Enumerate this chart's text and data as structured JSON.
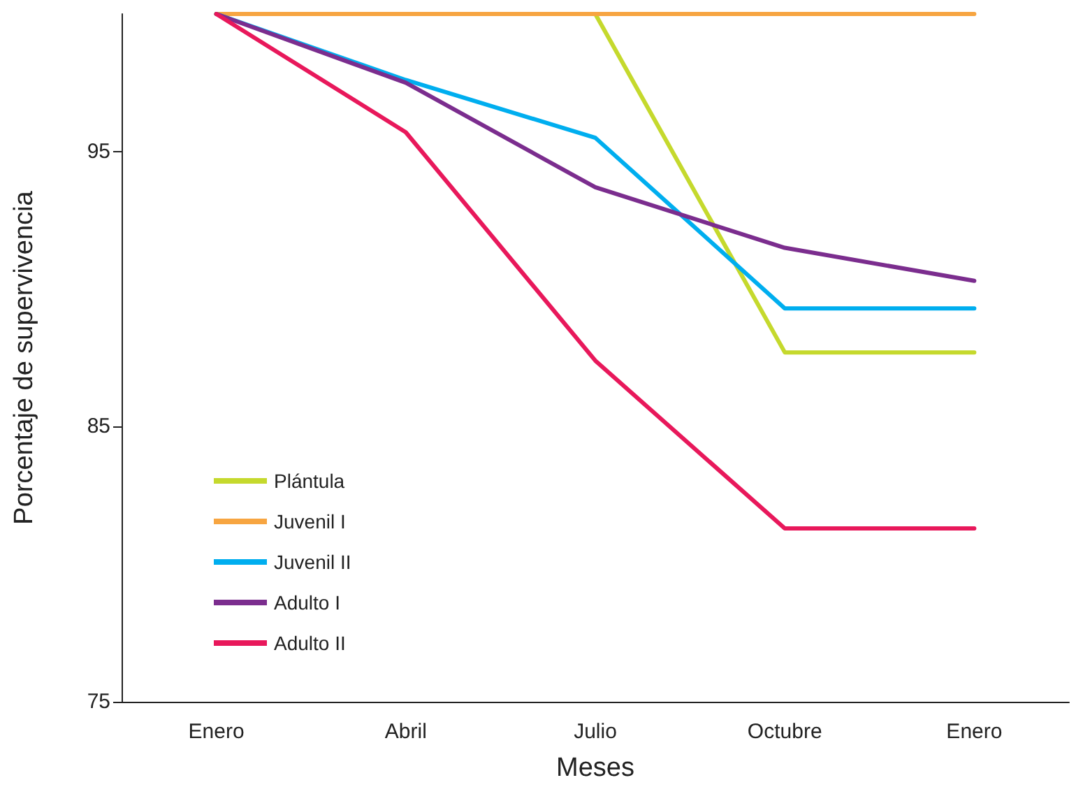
{
  "chart_data": {
    "type": "line",
    "xlabel": "Meses",
    "ylabel": "Porcentaje de supervivencia",
    "categories": [
      "Enero",
      "Abril",
      "Julio",
      "Octubre",
      "Enero"
    ],
    "series": [
      {
        "name": "Plántula",
        "color": "#c5d92d",
        "values": [
          100,
          100,
          100,
          87.7,
          87.7
        ]
      },
      {
        "name": "Juvenil I",
        "color": "#f7a541",
        "values": [
          100,
          100,
          100,
          100,
          100
        ]
      },
      {
        "name": "Juvenil II",
        "color": "#00aeef",
        "values": [
          100,
          97.6,
          95.5,
          89.3,
          89.3
        ]
      },
      {
        "name": "Adulto I",
        "color": "#7b2d8e",
        "values": [
          100,
          97.5,
          93.7,
          91.5,
          90.3
        ]
      },
      {
        "name": "Adulto II",
        "color": "#e8185b",
        "values": [
          100,
          95.7,
          87.4,
          81.3,
          81.3
        ]
      }
    ],
    "ylim": [
      75,
      100
    ],
    "yticks": [
      75,
      85,
      95
    ],
    "grid": false,
    "legend": "bottom left",
    "marker": "none",
    "line_style": "solid"
  }
}
